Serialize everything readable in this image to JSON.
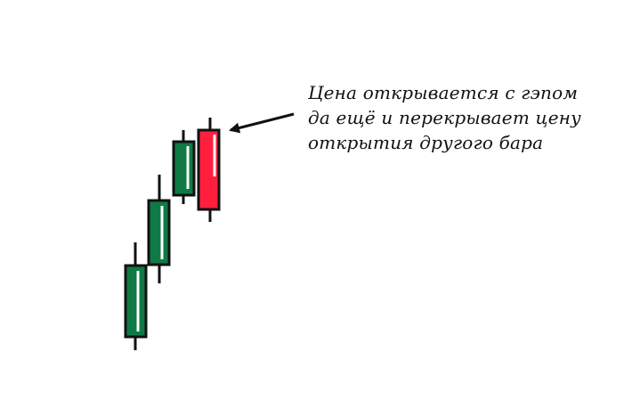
{
  "annotation": {
    "lines": [
      "Цена открывается с гэпом",
      "да ещё и перекрывает цену",
      "открытия другого бара"
    ]
  },
  "colors": {
    "bullish": "#0f7a45",
    "bearish": "#ff1f3d",
    "outline": "#111111",
    "highlight": "#ffffff",
    "background": "#ffffff"
  },
  "candles": [
    {
      "name": "candle-1",
      "direction": "up"
    },
    {
      "name": "candle-2",
      "direction": "up"
    },
    {
      "name": "candle-3",
      "direction": "up"
    },
    {
      "name": "candle-4",
      "direction": "down"
    }
  ]
}
